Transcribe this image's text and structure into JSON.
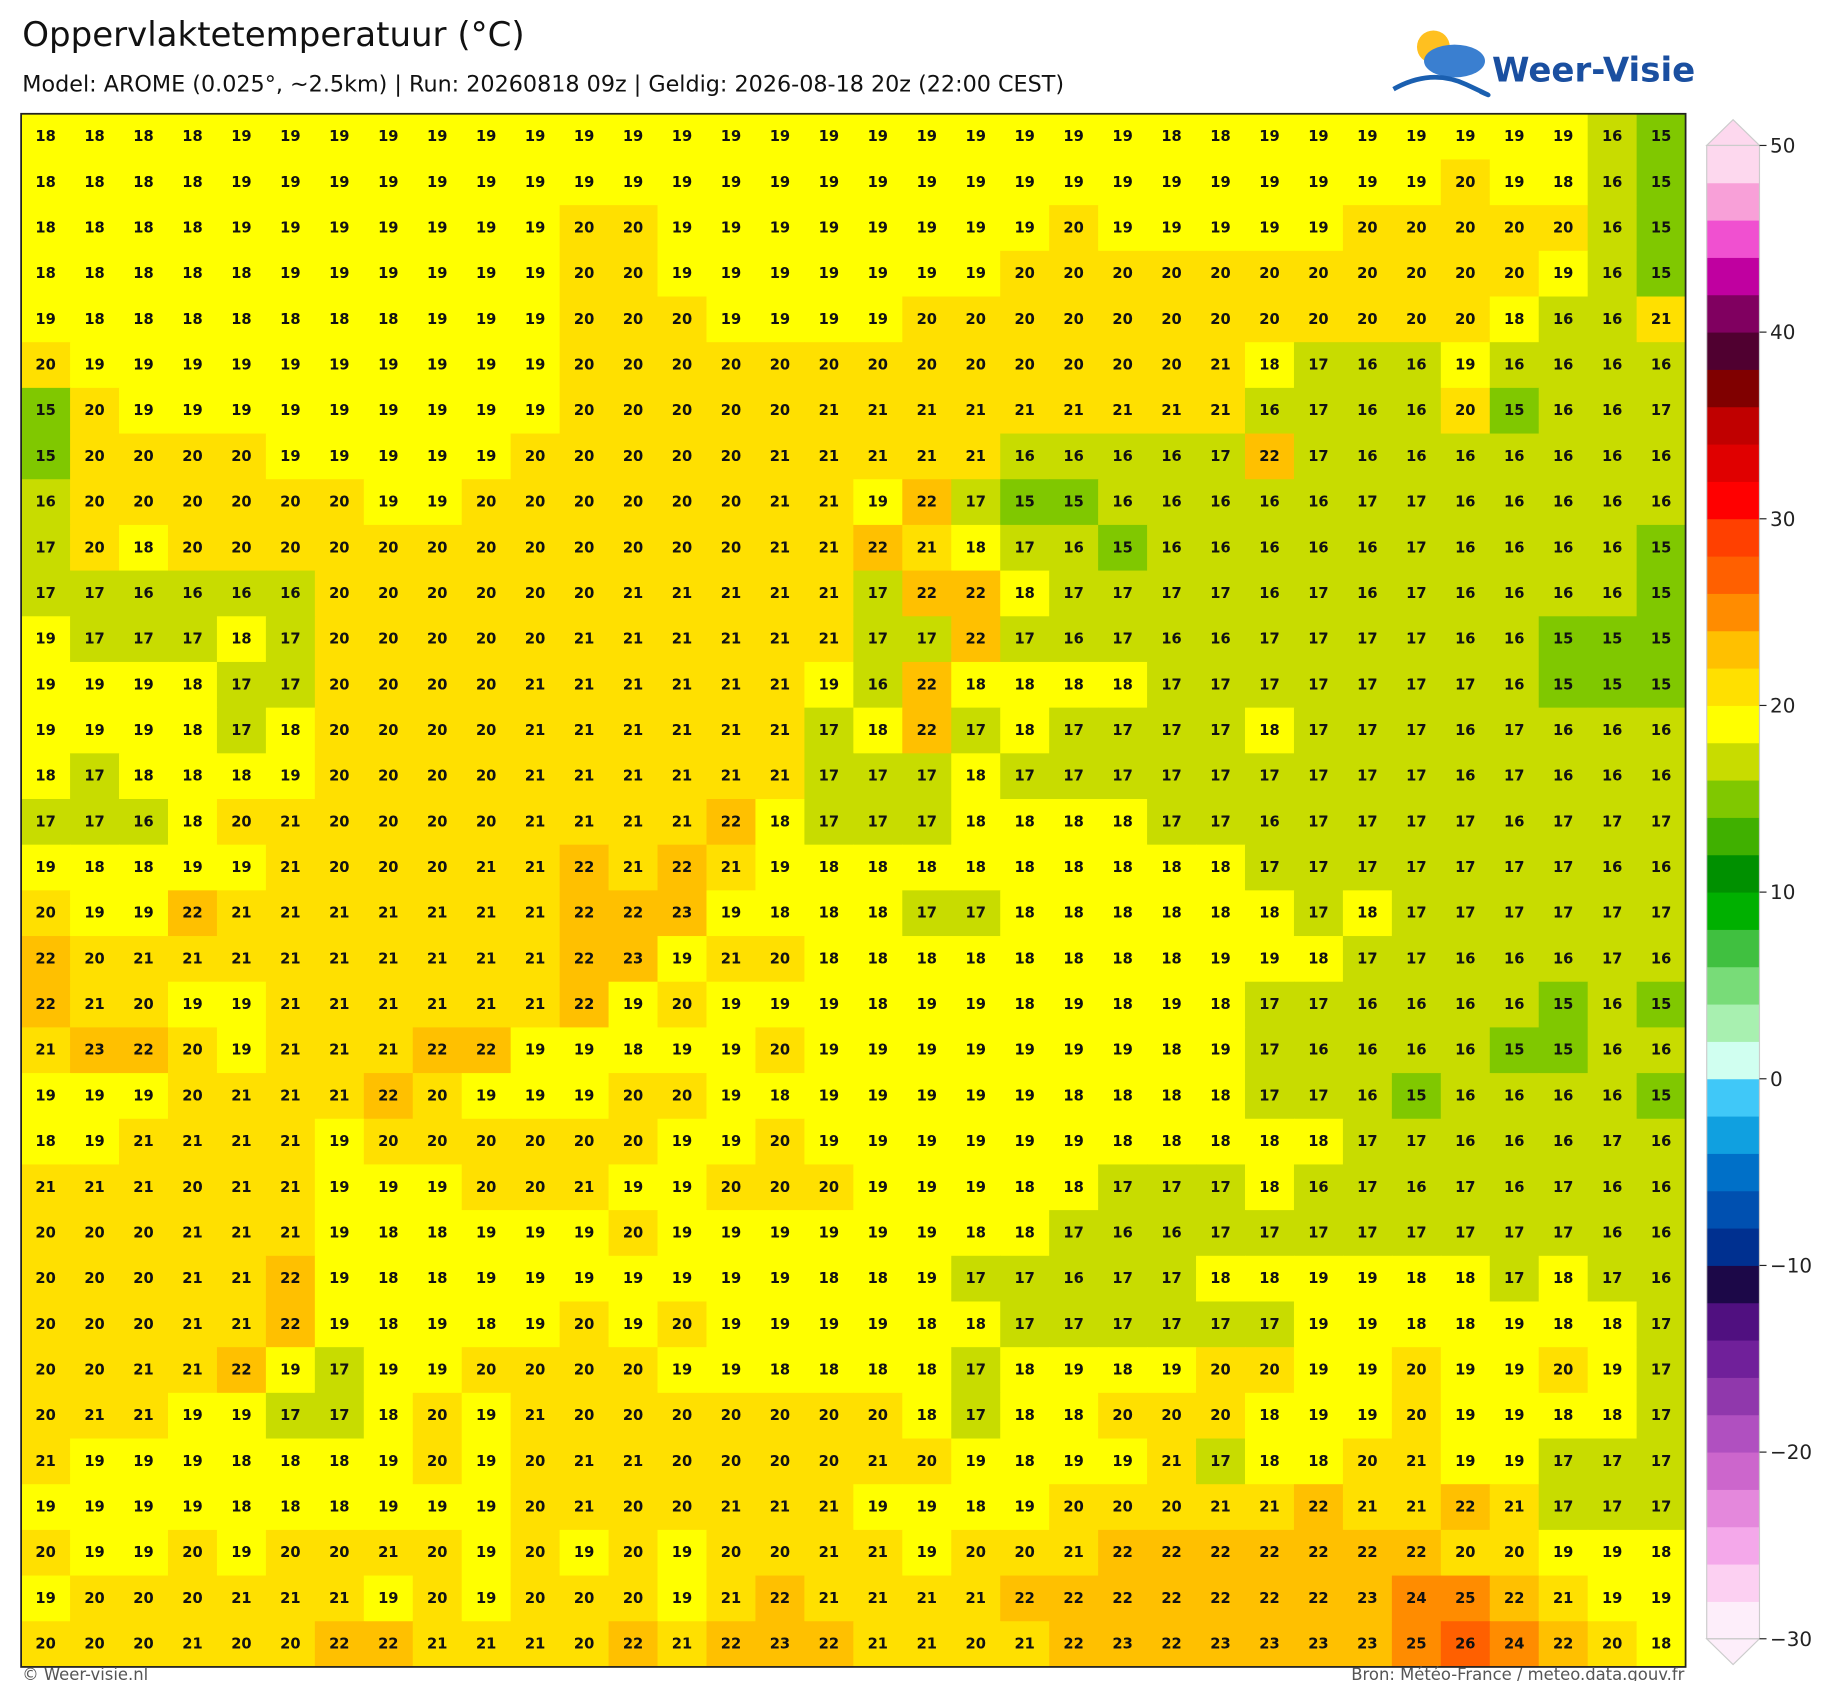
{
  "header": {
    "title": "Oppervlaktetemperatuur (°C)",
    "subtitle": "Model: AROME (0.025°, ~2.5km)  |  Run: 20260818 09z  |  Geldig: 2026-08-18 20z (22:00 CEST)"
  },
  "logo": "Weer-Visie",
  "map": {
    "values": [
      [
        18,
        18,
        18,
        18,
        19,
        19,
        19,
        19,
        19,
        19,
        19,
        19,
        19,
        19,
        19,
        19,
        19,
        19,
        19,
        19,
        19,
        19,
        19,
        18,
        18,
        19,
        19,
        19,
        19,
        19,
        19,
        19,
        16,
        15
      ],
      [
        18,
        18,
        18,
        18,
        19,
        19,
        19,
        19,
        19,
        19,
        19,
        19,
        19,
        19,
        19,
        19,
        19,
        19,
        19,
        19,
        19,
        19,
        19,
        19,
        19,
        19,
        19,
        19,
        19,
        20,
        19,
        18,
        16,
        15
      ],
      [
        18,
        18,
        18,
        18,
        19,
        19,
        19,
        19,
        19,
        19,
        19,
        20,
        20,
        19,
        19,
        19,
        19,
        19,
        19,
        19,
        19,
        20,
        19,
        19,
        19,
        19,
        19,
        20,
        20,
        20,
        20,
        20,
        16,
        15
      ],
      [
        18,
        18,
        18,
        18,
        18,
        19,
        19,
        19,
        19,
        19,
        19,
        20,
        20,
        19,
        19,
        19,
        19,
        19,
        19,
        19,
        20,
        20,
        20,
        20,
        20,
        20,
        20,
        20,
        20,
        20,
        20,
        19,
        16,
        15
      ],
      [
        19,
        18,
        18,
        18,
        18,
        18,
        18,
        18,
        19,
        19,
        19,
        20,
        20,
        20,
        19,
        19,
        19,
        19,
        20,
        20,
        20,
        20,
        20,
        20,
        20,
        20,
        20,
        20,
        20,
        20,
        18,
        16,
        16,
        21
      ],
      [
        20,
        19,
        19,
        19,
        19,
        19,
        19,
        19,
        19,
        19,
        19,
        20,
        20,
        20,
        20,
        20,
        20,
        20,
        20,
        20,
        20,
        20,
        20,
        20,
        21,
        18,
        17,
        16,
        16,
        19,
        16,
        16,
        16,
        16
      ],
      [
        15,
        20,
        19,
        19,
        19,
        19,
        19,
        19,
        19,
        19,
        19,
        20,
        20,
        20,
        20,
        20,
        21,
        21,
        21,
        21,
        21,
        21,
        21,
        21,
        21,
        16,
        17,
        16,
        16,
        20,
        15,
        16,
        16,
        17
      ],
      [
        15,
        20,
        20,
        20,
        20,
        19,
        19,
        19,
        19,
        19,
        20,
        20,
        20,
        20,
        20,
        21,
        21,
        21,
        21,
        21,
        16,
        16,
        16,
        16,
        17,
        22,
        17,
        16,
        16,
        16,
        16,
        16,
        16,
        16
      ],
      [
        16,
        20,
        20,
        20,
        20,
        20,
        20,
        19,
        19,
        20,
        20,
        20,
        20,
        20,
        20,
        21,
        21,
        19,
        22,
        17,
        15,
        15,
        16,
        16,
        16,
        16,
        16,
        17,
        17,
        16,
        16,
        16,
        16,
        16
      ],
      [
        17,
        20,
        18,
        20,
        20,
        20,
        20,
        20,
        20,
        20,
        20,
        20,
        20,
        20,
        20,
        21,
        21,
        22,
        21,
        18,
        17,
        16,
        15,
        16,
        16,
        16,
        16,
        16,
        17,
        16,
        16,
        16,
        16,
        15
      ],
      [
        17,
        17,
        16,
        16,
        16,
        16,
        20,
        20,
        20,
        20,
        20,
        20,
        21,
        21,
        21,
        21,
        21,
        17,
        22,
        22,
        18,
        17,
        17,
        17,
        17,
        16,
        17,
        16,
        17,
        16,
        16,
        16,
        16,
        15
      ],
      [
        19,
        17,
        17,
        17,
        18,
        17,
        20,
        20,
        20,
        20,
        20,
        21,
        21,
        21,
        21,
        21,
        21,
        17,
        17,
        22,
        17,
        16,
        17,
        16,
        16,
        17,
        17,
        17,
        17,
        16,
        16,
        15,
        15,
        15
      ],
      [
        19,
        19,
        19,
        18,
        17,
        17,
        20,
        20,
        20,
        20,
        21,
        21,
        21,
        21,
        21,
        21,
        19,
        16,
        22,
        18,
        18,
        18,
        18,
        17,
        17,
        17,
        17,
        17,
        17,
        17,
        16,
        15,
        15,
        15
      ],
      [
        19,
        19,
        19,
        18,
        17,
        18,
        20,
        20,
        20,
        20,
        21,
        21,
        21,
        21,
        21,
        21,
        17,
        18,
        22,
        17,
        18,
        17,
        17,
        17,
        17,
        18,
        17,
        17,
        17,
        16,
        17,
        16,
        16,
        16
      ],
      [
        18,
        17,
        18,
        18,
        18,
        19,
        20,
        20,
        20,
        20,
        21,
        21,
        21,
        21,
        21,
        21,
        17,
        17,
        17,
        18,
        17,
        17,
        17,
        17,
        17,
        17,
        17,
        17,
        17,
        16,
        17,
        16,
        16,
        16
      ],
      [
        17,
        17,
        16,
        18,
        20,
        21,
        20,
        20,
        20,
        20,
        21,
        21,
        21,
        21,
        22,
        18,
        17,
        17,
        17,
        18,
        18,
        18,
        18,
        17,
        17,
        16,
        17,
        17,
        17,
        17,
        16,
        17,
        17,
        17
      ],
      [
        19,
        18,
        18,
        19,
        19,
        21,
        20,
        20,
        20,
        21,
        21,
        22,
        21,
        22,
        21,
        19,
        18,
        18,
        18,
        18,
        18,
        18,
        18,
        18,
        18,
        17,
        17,
        17,
        17,
        17,
        17,
        17,
        16,
        16
      ],
      [
        20,
        19,
        19,
        22,
        21,
        21,
        21,
        21,
        21,
        21,
        21,
        22,
        22,
        23,
        19,
        18,
        18,
        18,
        17,
        17,
        18,
        18,
        18,
        18,
        18,
        18,
        17,
        18,
        17,
        17,
        17,
        17,
        17,
        17
      ],
      [
        22,
        20,
        21,
        21,
        21,
        21,
        21,
        21,
        21,
        21,
        21,
        22,
        23,
        19,
        21,
        20,
        18,
        18,
        18,
        18,
        18,
        18,
        18,
        18,
        19,
        19,
        18,
        17,
        17,
        16,
        16,
        16,
        17,
        16
      ],
      [
        22,
        21,
        20,
        19,
        19,
        21,
        21,
        21,
        21,
        21,
        21,
        22,
        19,
        20,
        19,
        19,
        19,
        18,
        19,
        19,
        18,
        19,
        18,
        19,
        18,
        17,
        17,
        16,
        16,
        16,
        16,
        15,
        16,
        15
      ],
      [
        21,
        23,
        22,
        20,
        19,
        21,
        21,
        21,
        22,
        22,
        19,
        19,
        18,
        19,
        19,
        20,
        19,
        19,
        19,
        19,
        19,
        19,
        19,
        18,
        19,
        17,
        16,
        16,
        16,
        16,
        15,
        15,
        16,
        16
      ],
      [
        19,
        19,
        19,
        20,
        21,
        21,
        21,
        22,
        20,
        19,
        19,
        19,
        20,
        20,
        19,
        18,
        19,
        19,
        19,
        19,
        19,
        18,
        18,
        18,
        18,
        17,
        17,
        16,
        15,
        16,
        16,
        16,
        16,
        15
      ],
      [
        18,
        19,
        21,
        21,
        21,
        21,
        19,
        20,
        20,
        20,
        20,
        20,
        20,
        19,
        19,
        20,
        19,
        19,
        19,
        19,
        19,
        19,
        18,
        18,
        18,
        18,
        18,
        17,
        17,
        16,
        16,
        16,
        17,
        16
      ],
      [
        21,
        21,
        21,
        20,
        21,
        21,
        19,
        19,
        19,
        20,
        20,
        21,
        19,
        19,
        20,
        20,
        20,
        19,
        19,
        19,
        18,
        18,
        17,
        17,
        17,
        18,
        16,
        17,
        16,
        17,
        16,
        17,
        16,
        16
      ],
      [
        20,
        20,
        20,
        21,
        21,
        21,
        19,
        18,
        18,
        19,
        19,
        19,
        20,
        19,
        19,
        19,
        19,
        19,
        19,
        18,
        18,
        17,
        16,
        16,
        17,
        17,
        17,
        17,
        17,
        17,
        17,
        17,
        16,
        16
      ],
      [
        20,
        20,
        20,
        21,
        21,
        22,
        19,
        18,
        18,
        19,
        19,
        19,
        19,
        19,
        19,
        19,
        18,
        18,
        19,
        17,
        17,
        16,
        17,
        17,
        18,
        18,
        19,
        19,
        18,
        18,
        17,
        18,
        17,
        16
      ],
      [
        20,
        20,
        20,
        21,
        21,
        22,
        19,
        18,
        19,
        18,
        19,
        20,
        19,
        20,
        19,
        19,
        19,
        19,
        18,
        18,
        17,
        17,
        17,
        17,
        17,
        17,
        19,
        19,
        18,
        18,
        19,
        18,
        18,
        17
      ],
      [
        20,
        20,
        21,
        21,
        22,
        19,
        17,
        19,
        19,
        20,
        20,
        20,
        20,
        19,
        19,
        18,
        18,
        18,
        18,
        17,
        18,
        19,
        18,
        19,
        20,
        20,
        19,
        19,
        20,
        19,
        19,
        20,
        19,
        17
      ],
      [
        20,
        21,
        21,
        19,
        19,
        17,
        17,
        18,
        20,
        19,
        21,
        20,
        20,
        20,
        20,
        20,
        20,
        20,
        18,
        17,
        18,
        18,
        20,
        20,
        20,
        18,
        19,
        19,
        20,
        19,
        19,
        18,
        18,
        17
      ],
      [
        21,
        19,
        19,
        19,
        18,
        18,
        18,
        19,
        20,
        19,
        20,
        21,
        21,
        20,
        20,
        20,
        20,
        21,
        20,
        19,
        18,
        19,
        19,
        21,
        17,
        18,
        18,
        20,
        21,
        19,
        19,
        17,
        17,
        17
      ],
      [
        19,
        19,
        19,
        19,
        18,
        18,
        18,
        19,
        19,
        19,
        20,
        21,
        20,
        20,
        21,
        21,
        21,
        19,
        19,
        18,
        19,
        20,
        20,
        20,
        21,
        21,
        22,
        21,
        21,
        22,
        21,
        17,
        17,
        17
      ],
      [
        20,
        19,
        19,
        20,
        19,
        20,
        20,
        21,
        20,
        19,
        20,
        19,
        20,
        19,
        20,
        20,
        21,
        21,
        19,
        20,
        20,
        21,
        22,
        22,
        22,
        22,
        22,
        22,
        22,
        20,
        20,
        19,
        19,
        18
      ],
      [
        19,
        20,
        20,
        20,
        21,
        21,
        21,
        19,
        20,
        19,
        20,
        20,
        20,
        19,
        21,
        22,
        21,
        21,
        21,
        21,
        22,
        22,
        22,
        22,
        22,
        22,
        22,
        23,
        24,
        25,
        22,
        21,
        19,
        19
      ],
      [
        20,
        20,
        20,
        21,
        20,
        20,
        22,
        22,
        21,
        21,
        21,
        20,
        22,
        21,
        22,
        23,
        22,
        21,
        21,
        20,
        21,
        22,
        23,
        22,
        23,
        23,
        23,
        23,
        25,
        26,
        24,
        22,
        20,
        18
      ]
    ]
  },
  "colorbar": {
    "lim": [
      -30,
      50
    ],
    "ticks": [
      {
        "value": -30,
        "label": "−30"
      },
      {
        "value": -20,
        "label": "−20"
      },
      {
        "value": -10,
        "label": "−10"
      },
      0,
      10,
      20,
      30,
      40,
      50
    ],
    "colors": [
      "#fdeefa",
      "#fcd0f2",
      "#f4a8ea",
      "#e488dc",
      "#cc66cc",
      "#b050c0",
      "#9038ac",
      "#70209a",
      "#501080",
      "#1c0848",
      "#003090",
      "#0050b0",
      "#0070c8",
      "#10a0e0",
      "#40c8f8",
      "#d0fff0",
      "#a8f0b0",
      "#78dc78",
      "#40c040",
      "#00b000",
      "#009000",
      "#40b000",
      "#80c800",
      "#c8dc00",
      "#ffff00",
      "#ffe000",
      "#ffc000",
      "#ff8c00",
      "#ff6000",
      "#ff4000",
      "#ff0000",
      "#e00000",
      "#c00000",
      "#800000",
      "#500030",
      "#800060",
      "#c000a0",
      "#f050d0",
      "#f8a0d8",
      "#fdd8ee"
    ]
  },
  "footer": {
    "left": "© Weer-visie.nl",
    "right": "Bron: Météo-France / meteo.data.gouv.fr"
  }
}
